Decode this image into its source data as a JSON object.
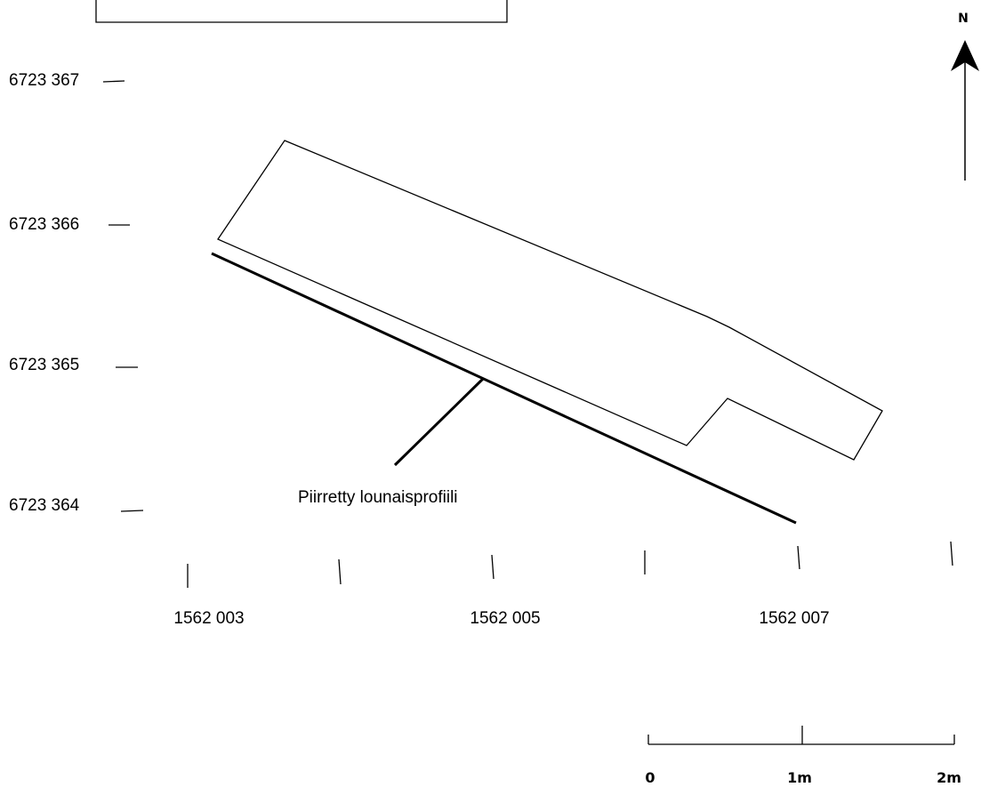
{
  "map": {
    "northing_labels": [
      "6723 367",
      "6723 366",
      "6723 365",
      "6723 364"
    ],
    "easting_labels": [
      "1562 003",
      "1562 005",
      "1562 007"
    ],
    "profile_label": "Piirretty lounaisprofiili",
    "north_label": "N",
    "scale_labels": [
      "0",
      "1m",
      "2m"
    ],
    "colors": {
      "ink": "#000000",
      "background": "#ffffff"
    }
  }
}
